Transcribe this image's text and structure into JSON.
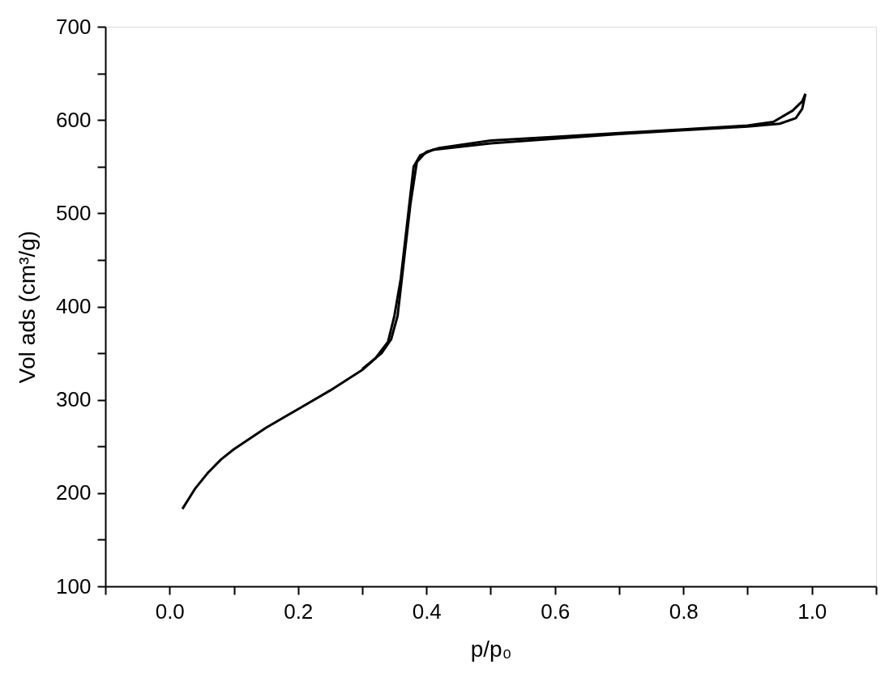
{
  "chart_data": {
    "type": "line",
    "xlabel": "p/p₀",
    "ylabel": "Vol ads (cm³/g)",
    "xlim": [
      -0.1,
      1.1
    ],
    "ylim": [
      100,
      700
    ],
    "xticks": [
      {
        "value": -0.1,
        "label": null
      },
      {
        "value": 0,
        "label": "0.0"
      },
      {
        "value": 0.1,
        "label": null
      },
      0.2,
      {
        "value": 0.3,
        "label": null
      },
      0.4,
      {
        "value": 0.5,
        "label": null
      },
      0.6,
      {
        "value": 0.7,
        "label": null
      },
      0.8,
      {
        "value": 0.9,
        "label": null
      },
      {
        "value": 1,
        "label": "1.0"
      },
      {
        "value": 1.1,
        "label": null
      }
    ],
    "yticks": [
      100,
      {
        "value": 150,
        "label": null
      },
      200,
      {
        "value": 250,
        "label": null
      },
      300,
      {
        "value": 350,
        "label": null
      },
      400,
      {
        "value": 450,
        "label": null
      },
      500,
      {
        "value": 550,
        "label": null
      },
      600,
      {
        "value": 650,
        "label": null
      },
      700
    ],
    "grid": false,
    "legend": false,
    "marker": "none",
    "line_style": "solid",
    "series": [
      {
        "color": "#000000",
        "x": [
          0.02,
          0.04,
          0.06,
          0.08,
          0.1,
          0.15,
          0.2,
          0.25,
          0.3,
          0.32,
          0.34,
          0.35,
          0.36,
          0.37,
          0.38,
          0.39,
          0.41,
          0.5,
          0.6,
          0.7,
          0.8,
          0.9,
          0.95,
          0.975,
          0.985,
          0.99
        ],
        "values": [
          183,
          205,
          222,
          236,
          247,
          270,
          290,
          310,
          332,
          344,
          362,
          390,
          430,
          490,
          550,
          562,
          568,
          575,
          580,
          585,
          589,
          593,
          596,
          602,
          612,
          628
        ]
      },
      {
        "color": "#000000",
        "x": [
          0.99,
          0.985,
          0.97,
          0.94,
          0.9,
          0.8,
          0.7,
          0.6,
          0.5,
          0.42,
          0.4,
          0.385,
          0.375,
          0.365,
          0.355,
          0.345,
          0.33,
          0.3
        ],
        "values": [
          628,
          620,
          610,
          598,
          594,
          590,
          586,
          582,
          578,
          570,
          566,
          555,
          510,
          450,
          390,
          365,
          350,
          333
        ]
      }
    ]
  }
}
